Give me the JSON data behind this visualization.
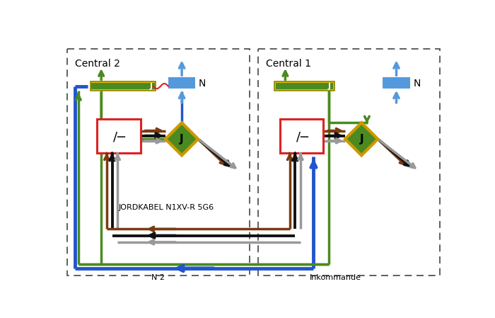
{
  "background": "#ffffff",
  "central2_label": "Central 2",
  "central1_label": "Central 1",
  "label_N": "N",
  "label_J": "J",
  "label_bottom_left": "N 2",
  "label_bottom_right": "Inkommande",
  "label_cable": "JORDKABEL N1XV-R 5G6",
  "colors": {
    "blue": "#2255cc",
    "blue_dark": "#1a44bb",
    "green": "#4a8a20",
    "brown": "#7b3a10",
    "black": "#111111",
    "gray": "#999999",
    "red": "#dd2222",
    "yellow": "#f0b800",
    "gold": "#cc9900",
    "light_blue": "#5599dd",
    "box_bg": "#e8eef5"
  },
  "lw_wire": 2.5,
  "lw_thick": 3.5
}
